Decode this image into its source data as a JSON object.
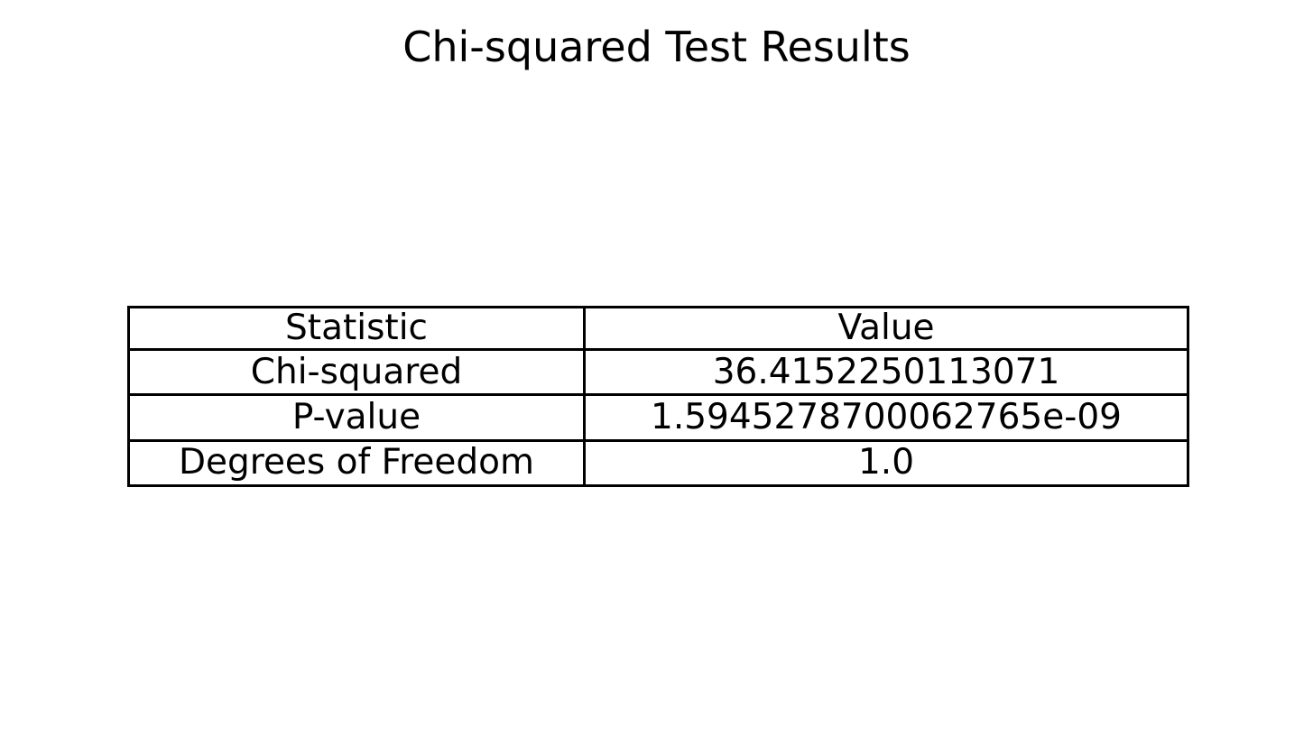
{
  "chart_data": {
    "type": "table",
    "title": "Chi-squared Test Results",
    "columns": [
      "Statistic",
      "Value"
    ],
    "rows": [
      [
        "Chi-squared",
        "36.4152250113071"
      ],
      [
        "P-value",
        "1.5945278700062765e-09"
      ],
      [
        "Degrees of Freedom",
        "1.0"
      ]
    ],
    "border_color": "#000000",
    "background_color": "#ffffff"
  }
}
